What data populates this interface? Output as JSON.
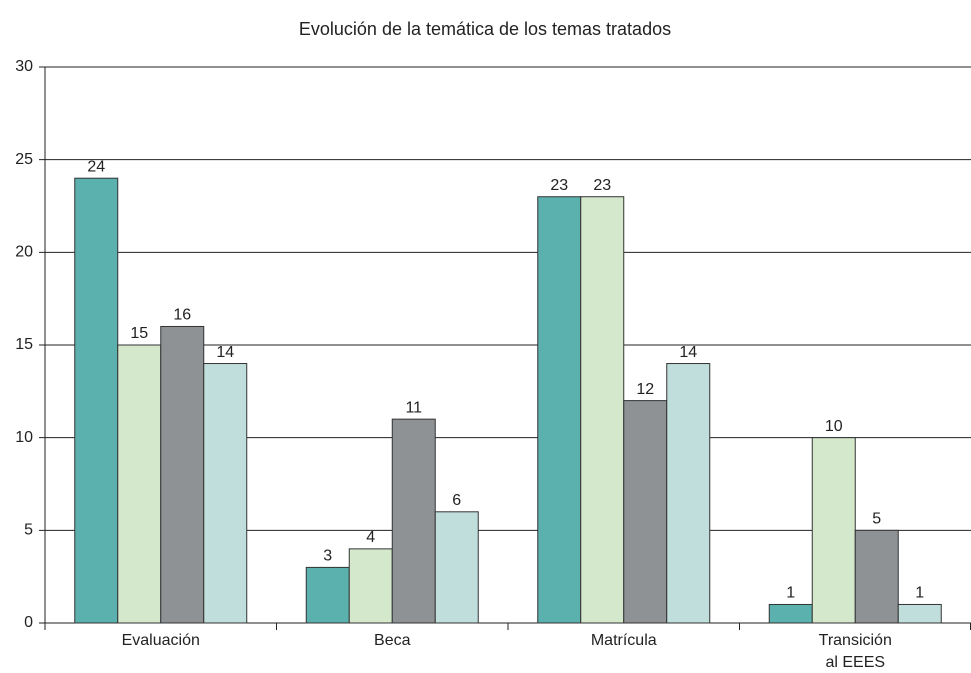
{
  "chart_data": {
    "type": "bar",
    "title": "Evolución de la temática de los temas tratados",
    "categories": [
      "Evaluación",
      "Beca",
      "Matrícula",
      "Transición al EEES"
    ],
    "series": [
      {
        "color": "#5bb1ae",
        "values": [
          24,
          3,
          23,
          1
        ]
      },
      {
        "color": "#d4e8cc",
        "values": [
          15,
          4,
          23,
          10
        ]
      },
      {
        "color": "#8e9295",
        "values": [
          16,
          11,
          12,
          5
        ]
      },
      {
        "color": "#c0dedb",
        "values": [
          14,
          6,
          14,
          1
        ]
      }
    ],
    "ylim": [
      0,
      30
    ],
    "yticks": [
      0,
      5,
      10,
      15,
      20,
      25,
      30
    ],
    "grid": true
  }
}
